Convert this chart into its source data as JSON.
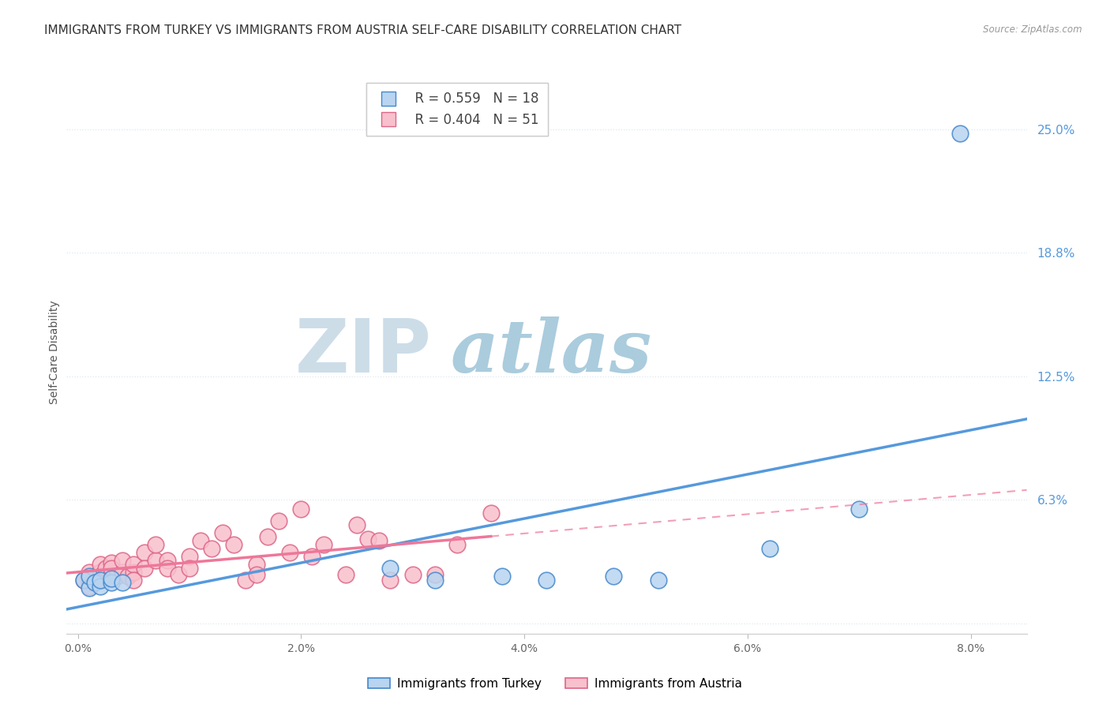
{
  "title": "IMMIGRANTS FROM TURKEY VS IMMIGRANTS FROM AUSTRIA SELF-CARE DISABILITY CORRELATION CHART",
  "source": "Source: ZipAtlas.com",
  "ylabel": "Self-Care Disability",
  "x_tick_labels": [
    "0.0%",
    "2.0%",
    "4.0%",
    "6.0%",
    "8.0%"
  ],
  "x_tick_vals": [
    0.0,
    0.02,
    0.04,
    0.06,
    0.08
  ],
  "right_ytick_labels": [
    "25.0%",
    "18.8%",
    "12.5%",
    "6.3%"
  ],
  "right_ytick_vals": [
    0.25,
    0.188,
    0.125,
    0.063
  ],
  "ylim": [
    -0.005,
    0.28
  ],
  "xlim": [
    -0.001,
    0.085
  ],
  "legend_label_turkey": "Immigrants from Turkey",
  "legend_label_austria": "Immigrants from Austria",
  "legend_r_turkey": "R = 0.559",
  "legend_n_turkey": "N = 18",
  "legend_r_austria": "R = 0.404",
  "legend_n_austria": "N = 51",
  "turkey_color": "#b8d4f0",
  "turkey_line_color": "#5599dd",
  "turkey_edge_color": "#4488cc",
  "austria_color": "#f8c0cc",
  "austria_line_color": "#ee7799",
  "austria_edge_color": "#dd6688",
  "turkey_x": [
    0.0005,
    0.001,
    0.001,
    0.0015,
    0.002,
    0.002,
    0.003,
    0.003,
    0.004,
    0.028,
    0.032,
    0.038,
    0.042,
    0.048,
    0.052,
    0.062,
    0.07,
    0.079
  ],
  "turkey_y": [
    0.022,
    0.018,
    0.024,
    0.021,
    0.019,
    0.022,
    0.021,
    0.023,
    0.021,
    0.028,
    0.022,
    0.024,
    0.022,
    0.024,
    0.022,
    0.038,
    0.058,
    0.248
  ],
  "austria_x": [
    0.0005,
    0.001,
    0.001,
    0.001,
    0.0015,
    0.002,
    0.002,
    0.002,
    0.002,
    0.0025,
    0.003,
    0.003,
    0.003,
    0.0035,
    0.004,
    0.004,
    0.0045,
    0.005,
    0.005,
    0.005,
    0.006,
    0.006,
    0.007,
    0.007,
    0.008,
    0.008,
    0.009,
    0.01,
    0.01,
    0.011,
    0.012,
    0.013,
    0.014,
    0.015,
    0.016,
    0.016,
    0.017,
    0.018,
    0.019,
    0.02,
    0.021,
    0.022,
    0.024,
    0.025,
    0.026,
    0.027,
    0.028,
    0.03,
    0.032,
    0.034,
    0.037
  ],
  "austria_y": [
    0.022,
    0.021,
    0.026,
    0.019,
    0.024,
    0.022,
    0.026,
    0.03,
    0.024,
    0.028,
    0.025,
    0.031,
    0.028,
    0.024,
    0.026,
    0.032,
    0.024,
    0.026,
    0.03,
    0.022,
    0.036,
    0.028,
    0.032,
    0.04,
    0.032,
    0.028,
    0.025,
    0.034,
    0.028,
    0.042,
    0.038,
    0.046,
    0.04,
    0.022,
    0.03,
    0.025,
    0.044,
    0.052,
    0.036,
    0.058,
    0.034,
    0.04,
    0.025,
    0.05,
    0.043,
    0.042,
    0.022,
    0.025,
    0.025,
    0.04,
    0.056
  ],
  "background_color": "#ffffff",
  "grid_color": "#dde8f0",
  "title_fontsize": 11,
  "axis_label_fontsize": 10,
  "tick_fontsize": 10,
  "watermark_zip": "ZIP",
  "watermark_atlas": "atlas",
  "watermark_color_zip": "#ccdde8",
  "watermark_color_atlas": "#aaccdd"
}
